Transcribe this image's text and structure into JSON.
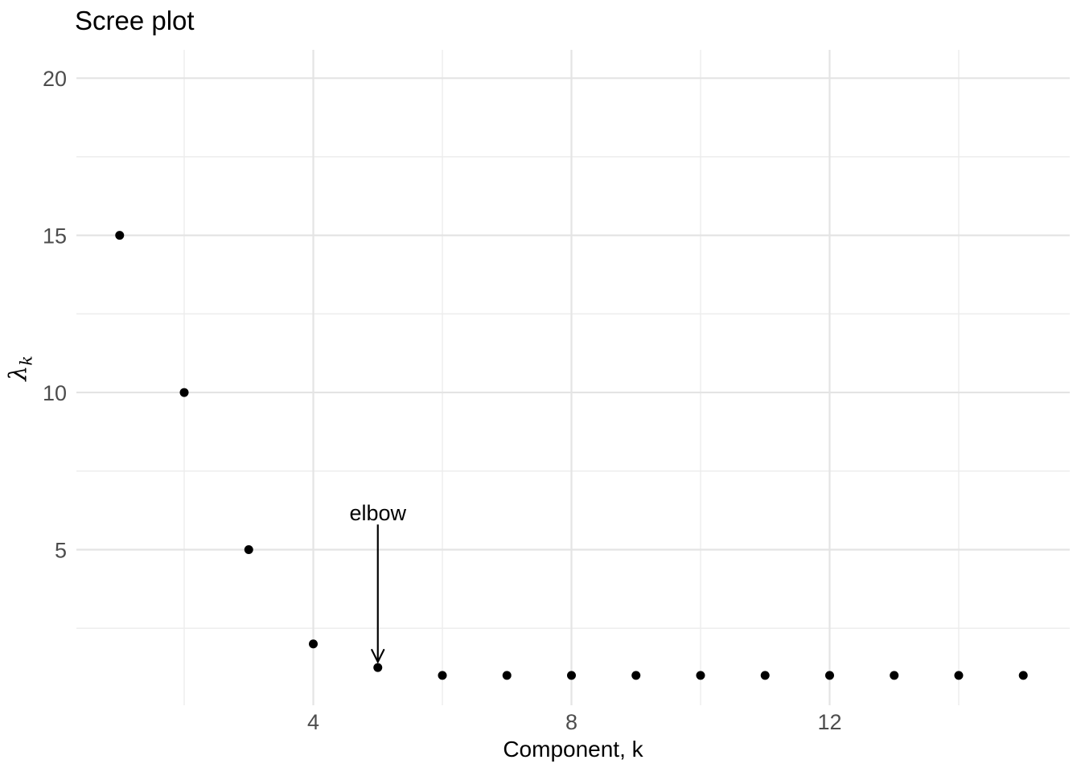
{
  "chart_data": {
    "type": "scatter",
    "title": "Scree plot",
    "xlabel": "Component, k",
    "ylabel": {
      "base": "λ",
      "subscript": "k"
    },
    "x": [
      1,
      2,
      3,
      4,
      5,
      6,
      7,
      8,
      9,
      10,
      11,
      12,
      13,
      14,
      15
    ],
    "y": [
      15,
      10,
      5,
      2,
      1.25,
      1,
      1,
      1,
      1,
      1,
      1,
      1,
      1,
      1,
      1
    ],
    "xlim": [
      0.33,
      15.72
    ],
    "ylim": [
      0.05,
      20.9
    ],
    "x_major_ticks": [
      4,
      8,
      12
    ],
    "x_minor_ticks": [
      2,
      6,
      10,
      14
    ],
    "y_major_ticks": [
      5,
      10,
      15,
      20
    ],
    "y_minor_ticks": [
      2.5,
      7.5,
      12.5,
      17.5
    ],
    "grid": true,
    "legend": "none",
    "annotation": {
      "text": "elbow",
      "text_x": 5,
      "text_y": 5.93,
      "arrow": {
        "x1": 5,
        "y1": 5.8,
        "x2": 5,
        "y2": 1.43
      }
    },
    "colors": {
      "point": "#000000",
      "grid_major": "#e4e4e4",
      "grid_minor": "#ececec",
      "tick_label": "#4d4d4d",
      "text": "#000000"
    },
    "point_radius": 5.5
  }
}
